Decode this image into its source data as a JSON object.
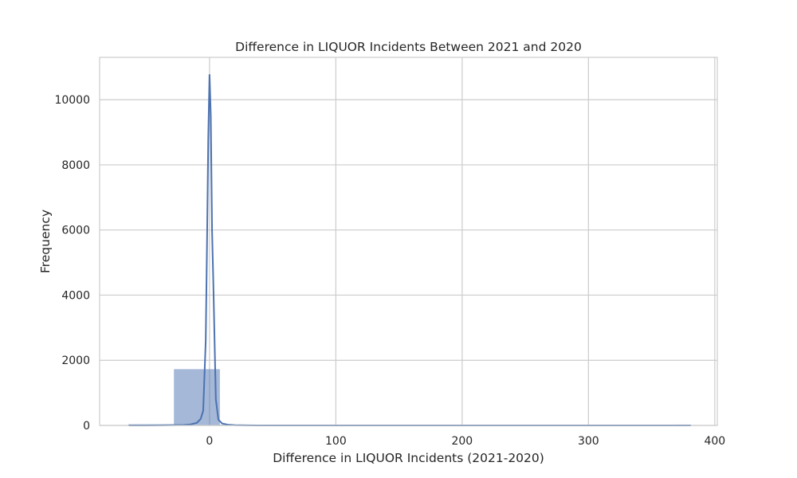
{
  "chart_data": {
    "type": "histogram",
    "title": "Difference in LIQUOR Incidents Between 2021 and 2020",
    "xlabel": "Difference in LIQUOR Incidents (2021-2020)",
    "ylabel": "Frequency",
    "xlim": [
      -87,
      402
    ],
    "ylim": [
      0,
      11300
    ],
    "x_ticks": [
      0,
      100,
      200,
      300,
      400
    ],
    "y_ticks": [
      0,
      2000,
      4000,
      6000,
      8000,
      10000
    ],
    "grid": true,
    "bar_color": "#4c72b0",
    "bar_opacity": 0.5,
    "line_color": "#4c72b0",
    "histogram": {
      "bin_edges": [
        -64,
        -28,
        8,
        44,
        80,
        116,
        152,
        188,
        224,
        260,
        296,
        332,
        368,
        381
      ],
      "counts": [
        30,
        1720,
        15,
        5,
        3,
        2,
        1,
        1,
        1,
        1,
        1,
        1,
        20
      ]
    },
    "density_curve": {
      "x": [
        -64,
        -50,
        -40,
        -30,
        -20,
        -15,
        -10,
        -7,
        -5,
        -3,
        -2,
        -1,
        0,
        1,
        2,
        3,
        5,
        7,
        10,
        15,
        20,
        30,
        40,
        60,
        100,
        200,
        300,
        381
      ],
      "y": [
        0,
        0,
        3,
        8,
        15,
        30,
        80,
        200,
        450,
        2600,
        5500,
        8800,
        10780,
        9500,
        6000,
        4400,
        800,
        180,
        60,
        20,
        8,
        3,
        0,
        0,
        0,
        0,
        0,
        0
      ]
    }
  }
}
